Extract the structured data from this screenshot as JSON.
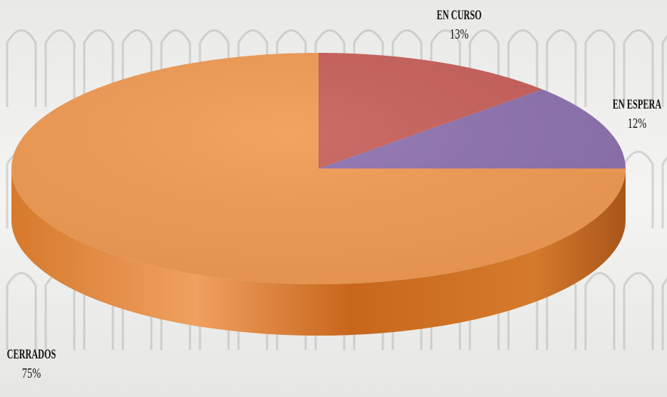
{
  "chart_data": {
    "type": "pie",
    "title": "",
    "labels": [
      "EN CURSO",
      "EN ESPERA",
      "CERRADOS"
    ],
    "values": [
      13,
      12,
      75
    ],
    "value_labels": [
      "13%",
      "12%",
      "75%"
    ],
    "colors": [
      "#c8605a",
      "#8e72ae",
      "#f19b54"
    ],
    "legend": "none",
    "style": "3d-tilted"
  },
  "background": {
    "description_color": "#f0f0f0",
    "edge_color": "#c6691e"
  }
}
